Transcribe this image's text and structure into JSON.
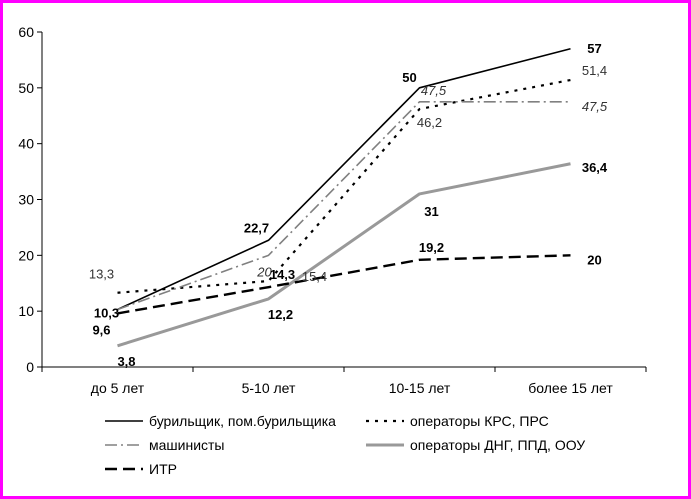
{
  "chart_data": {
    "type": "line",
    "categories": [
      "до 5 лет",
      "5-10 лет",
      "10-15 лет",
      "более 15 лет"
    ],
    "ylim": [
      0,
      60
    ],
    "yticks": [
      0,
      10,
      20,
      30,
      40,
      50,
      60
    ],
    "grid": false,
    "legend_position": "bottom",
    "series": [
      {
        "name": "бурильщик, пом.бурильщика",
        "values": [
          10.3,
          22.7,
          50,
          57
        ],
        "labels": [
          "10,3",
          "22,7",
          "50",
          "57"
        ],
        "color": "#000000",
        "style": "solid"
      },
      {
        "name": "операторы КРС, ПРС",
        "values": [
          13.3,
          15.4,
          46.2,
          51.4
        ],
        "labels": [
          "13,3",
          "15,4",
          "46,2",
          "51,4"
        ],
        "color": "#000000",
        "style": "dotted"
      },
      {
        "name": "машинисты",
        "values": [
          10.3,
          20,
          47.5,
          47.5
        ],
        "labels": [
          "",
          "20",
          "47,5",
          "47,5"
        ],
        "color": "#808080",
        "style": "dashdot"
      },
      {
        "name": "операторы ДНГ, ППД, ООУ",
        "values": [
          3.8,
          12.2,
          31,
          36.4
        ],
        "labels": [
          "3,8",
          "12,2",
          "31",
          "36,4"
        ],
        "color": "#999999",
        "style": "thick"
      },
      {
        "name": "ИТР",
        "values": [
          9.6,
          14.3,
          19.2,
          20
        ],
        "labels": [
          "9,6",
          "14,3",
          "19,2",
          "20"
        ],
        "color": "#000000",
        "style": "dashed"
      }
    ]
  }
}
